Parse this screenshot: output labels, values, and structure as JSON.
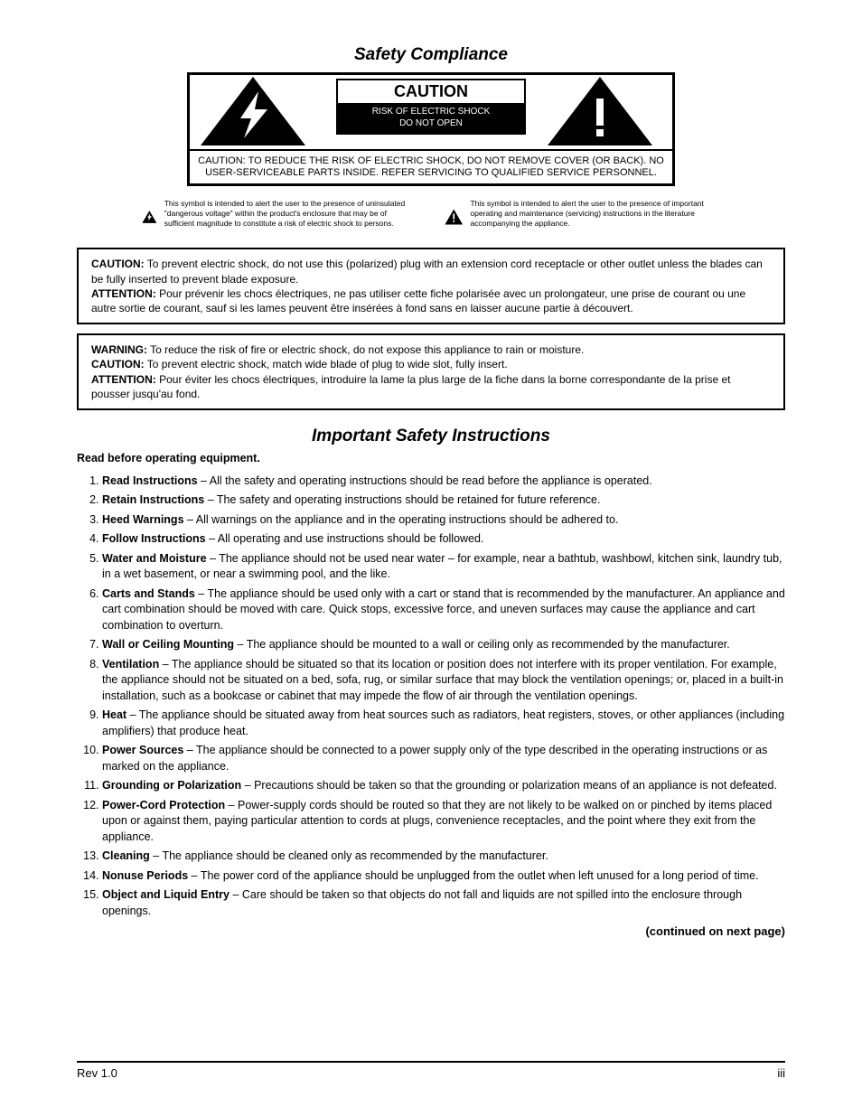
{
  "title": "Safety Compliance",
  "caution": {
    "heading": "CAUTION",
    "subheading_l1": "RISK OF ELECTRIC SHOCK",
    "subheading_l2": "DO NOT OPEN",
    "bottom_l1": "CAUTION: TO REDUCE THE RISK OF ELECTRIC SHOCK, DO NOT REMOVE COVER (OR BACK). NO",
    "bottom_l2": "USER-SERVICEABLE PARTS INSIDE. REFER SERVICING TO QUALIFIED SERVICE PERSONNEL."
  },
  "explain": {
    "left": "This symbol is intended to alert the user to the presence of uninsulated \"dangerous voltage\" within the product's enclosure that may be of sufficient magnitude to constitute a risk of electric shock to persons.",
    "right": "This symbol is intended to alert the user to the presence of important operating and maintenance (servicing) instructions in the literature accompanying the appliance."
  },
  "warnings": {
    "box1_bold": "CAUTION:",
    "box1_text": " To prevent electric shock, do not use this (polarized) plug with an extension cord receptacle or other outlet unless the blades can be fully inserted to prevent blade exposure.",
    "box1_fr_bold": "ATTENTION:",
    "box1_fr_text": " Pour prévenir les chocs électriques, ne pas utiliser cette fiche polarisée avec un prolongateur, une prise de courant ou une autre sortie de courant, sauf si les lames peuvent être insérées à fond sans en laisser aucune partie à découvert.",
    "box2_bold1": "WARNING:",
    "box2_l1": " To reduce the risk of fire or electric shock, do not expose this appliance to rain or moisture.",
    "box2_bold2": "CAUTION:",
    "box2_l2": " To prevent electric shock, match wide blade of plug to wide slot, fully insert.",
    "box2_fr_bold": "ATTENTION:",
    "box2_fr": " Pour éviter les chocs électriques, introduire la lame la plus large de la fiche dans la borne correspondante de la prise et pousser jusqu'au fond."
  },
  "instr_title": "Important Safety Instructions",
  "read_line": "Read before operating equipment.",
  "instructions": [
    "Read Instructions – All the safety and operating instructions should be read before the appliance is operated.",
    "Retain Instructions – The safety and operating instructions should be retained for future reference.",
    "Heed Warnings – All warnings on the appliance and in the operating instructions should be adhered to.",
    "Follow Instructions – All operating and use instructions should be followed.",
    "Water and Moisture – The appliance should not be used near water – for example, near a bathtub, washbowl, kitchen sink, laundry tub, in a wet basement, or near a swimming pool, and the like.",
    "Carts and Stands – The appliance should be used only with a cart or stand that is recommended by the manufacturer. An appliance and cart combination should be moved with care. Quick stops, excessive force, and uneven surfaces may cause the appliance and cart combination to overturn.",
    "Wall or Ceiling Mounting – The appliance should be mounted to a wall or ceiling only as recommended by the manufacturer.",
    "Ventilation – The appliance should be situated so that its location or position does not interfere with its proper ventilation. For example, the appliance should not be situated on a bed, sofa, rug, or similar surface that may block the ventilation openings; or, placed in a built-in installation, such as a bookcase or cabinet that may impede the flow of air through the ventilation openings.",
    "Heat – The appliance should be situated away from heat sources such as radiators, heat registers, stoves, or other appliances (including amplifiers) that produce heat.",
    "Power Sources – The appliance should be connected to a power supply only of the type described in the operating instructions or as marked on the appliance.",
    "Grounding or Polarization – Precautions should be taken so that the grounding or polarization means of an appliance is not defeated.",
    "Power-Cord Protection – Power-supply cords should be routed so that they are not likely to be walked on or pinched by items placed upon or against them, paying particular attention to cords at plugs, convenience receptacles, and the point where they exit from the appliance.",
    "Cleaning – The appliance should be cleaned only as recommended by the manufacturer.",
    "Nonuse Periods – The power cord of the appliance should be unplugged from the outlet when left unused for a long period of time.",
    "Object and Liquid Entry – Care should be taken so that objects do not fall and liquids are not spilled into the enclosure through openings."
  ],
  "continued": "(continued on next page)",
  "footer_left": "Rev 1.0",
  "footer_right": "iii"
}
